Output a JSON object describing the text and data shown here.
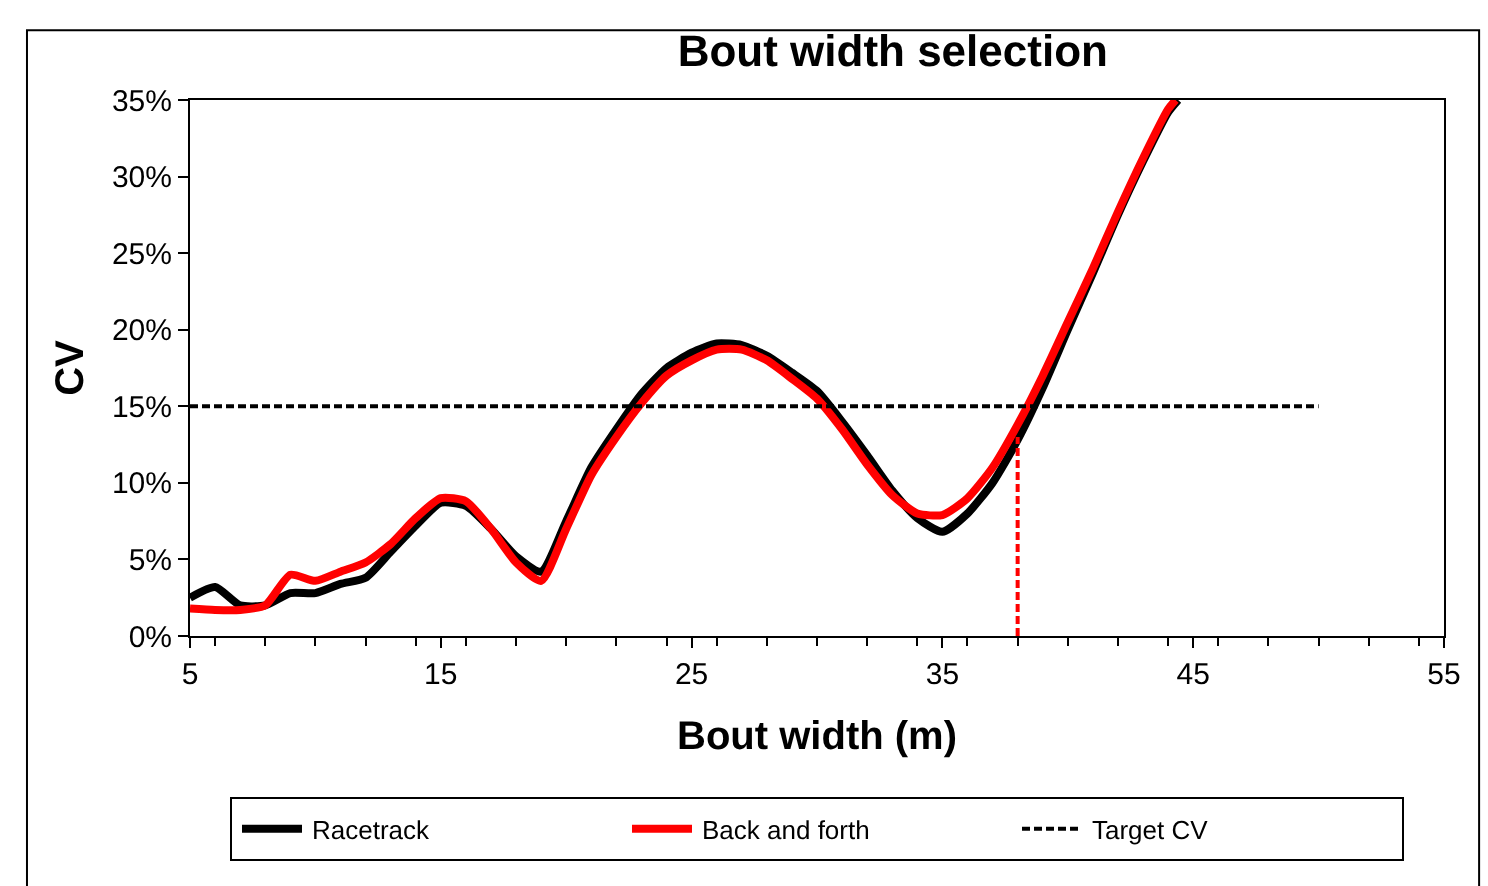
{
  "chart_data": {
    "type": "line",
    "title": "Bout width selection",
    "xlabel": "Bout width (m)",
    "ylabel": "CV",
    "xlim": [
      5,
      55
    ],
    "xticks": [
      5,
      15,
      25,
      35,
      45,
      55
    ],
    "ylim": [
      0,
      0.35
    ],
    "yticks": [
      {
        "value": 0,
        "label": "0%"
      },
      {
        "value": 0.05,
        "label": "5%"
      },
      {
        "value": 0.1,
        "label": "10%"
      },
      {
        "value": 0.15,
        "label": "15%"
      },
      {
        "value": 0.2,
        "label": "20%"
      },
      {
        "value": 0.25,
        "label": "25%"
      },
      {
        "value": 0.3,
        "label": "30%"
      },
      {
        "value": 0.35,
        "label": "35%"
      }
    ],
    "legend": "bottom",
    "marker": "none",
    "series": [
      {
        "name": "Racetrack",
        "color": "#000000",
        "line_style": "solid",
        "x": [
          5,
          6,
          7,
          8,
          9,
          10,
          11,
          12,
          13,
          14,
          15,
          16,
          17,
          18,
          19,
          20,
          21,
          22,
          23,
          24,
          25,
          26,
          27,
          28,
          29,
          30,
          31,
          32,
          33,
          34,
          35,
          36,
          37,
          38,
          39,
          40,
          41,
          42,
          43,
          44,
          44.4
        ],
        "values": [
          0.025,
          0.032,
          0.02,
          0.02,
          0.028,
          0.028,
          0.034,
          0.038,
          0.055,
          0.072,
          0.087,
          0.085,
          0.07,
          0.052,
          0.042,
          0.075,
          0.11,
          0.135,
          0.158,
          0.175,
          0.185,
          0.191,
          0.19,
          0.183,
          0.172,
          0.16,
          0.14,
          0.118,
          0.095,
          0.077,
          0.068,
          0.08,
          0.1,
          0.128,
          0.162,
          0.2,
          0.237,
          0.275,
          0.31,
          0.342,
          0.35
        ]
      },
      {
        "name": "Back and forth",
        "color": "#ff0000",
        "line_style": "solid",
        "x": [
          5,
          6,
          7,
          8,
          9,
          10,
          11,
          12,
          13,
          14,
          15,
          16,
          17,
          18,
          19,
          20,
          21,
          22,
          23,
          24,
          25,
          26,
          27,
          28,
          29,
          30,
          31,
          32,
          33,
          34,
          35,
          36,
          37,
          38,
          39,
          40,
          41,
          42,
          43,
          44,
          44.3
        ],
        "values": [
          0.018,
          0.017,
          0.017,
          0.02,
          0.04,
          0.036,
          0.042,
          0.048,
          0.06,
          0.077,
          0.09,
          0.088,
          0.07,
          0.048,
          0.036,
          0.07,
          0.105,
          0.13,
          0.152,
          0.17,
          0.18,
          0.187,
          0.187,
          0.18,
          0.168,
          0.155,
          0.135,
          0.112,
          0.092,
          0.08,
          0.079,
          0.09,
          0.11,
          0.138,
          0.17,
          0.205,
          0.24,
          0.277,
          0.312,
          0.344,
          0.35
        ]
      },
      {
        "name": "Target CV",
        "color": "#000000",
        "line_style": "dashed",
        "x": [
          5,
          50
        ],
        "values": [
          0.15,
          0.15
        ]
      },
      {
        "color": "#ff0000",
        "line_style": "dashed",
        "x": [
          38,
          38
        ],
        "values": [
          0,
          0.13
        ]
      }
    ]
  }
}
